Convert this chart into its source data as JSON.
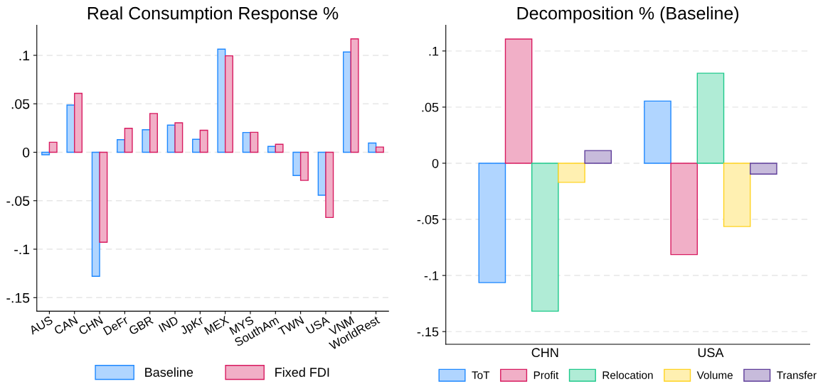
{
  "chart_data": [
    {
      "type": "bar",
      "title": "Real Consumption Response %",
      "categories": [
        "AUS",
        "CAN",
        "CHN",
        "DeFr",
        "GBR",
        "IND",
        "JpKr",
        "MEX",
        "MYS",
        "SouthAm",
        "TWN",
        "USA",
        "VNM",
        "WorldRest"
      ],
      "series": [
        {
          "name": "Baseline",
          "color": "#1e88ff",
          "values": [
            -0.0026,
            0.0487,
            -0.128,
            0.013,
            0.0232,
            0.028,
            0.0134,
            0.1064,
            0.0204,
            0.006,
            -0.024,
            -0.0443,
            0.1034,
            0.0095
          ]
        },
        {
          "name": "Fixed FDI",
          "color": "#d81b60",
          "values": [
            0.0103,
            0.0608,
            -0.0928,
            0.0247,
            0.04,
            0.0304,
            0.0227,
            0.0995,
            0.0206,
            0.0082,
            -0.029,
            -0.0673,
            0.117,
            0.0054
          ]
        }
      ],
      "ylim": [
        -0.164,
        0.131
      ],
      "yticks": [
        {
          "value": -0.15,
          "label": "-.15"
        },
        {
          "value": -0.1,
          "label": "-.1"
        },
        {
          "value": -0.05,
          "label": "-.05"
        },
        0,
        {
          "value": 0.05,
          "label": ".05"
        },
        {
          "value": 0.1,
          "label": ".1"
        }
      ],
      "grid": "y",
      "legend": "bottom"
    },
    {
      "type": "bar",
      "title": "Decomposition % (Baseline)",
      "categories": [
        "CHN",
        "USA"
      ],
      "series": [
        {
          "name": "ToT",
          "color": "#1e88ff",
          "values": [
            -0.1064,
            0.0554
          ]
        },
        {
          "name": "Profit",
          "color": "#d81b60",
          "values": [
            0.1106,
            -0.0814
          ]
        },
        {
          "name": "Relocation",
          "color": "#1ec98b",
          "values": [
            -0.1318,
            0.0802
          ]
        },
        {
          "name": "Volume",
          "color": "#ffd320",
          "values": [
            -0.017,
            -0.0564
          ]
        },
        {
          "name": "Transfer",
          "color": "#5e3c99",
          "values": [
            0.0113,
            -0.0097
          ]
        }
      ],
      "ylim": [
        -0.1613,
        0.1229
      ],
      "yticks": [
        {
          "value": -0.15,
          "label": "-.15"
        },
        {
          "value": -0.1,
          "label": "-.1"
        },
        {
          "value": -0.05,
          "label": "-.05"
        },
        0,
        {
          "value": 0.05,
          "label": ".05"
        },
        {
          "value": 0.1,
          "label": ".1"
        }
      ],
      "grid": "y",
      "legend": "bottom"
    }
  ]
}
